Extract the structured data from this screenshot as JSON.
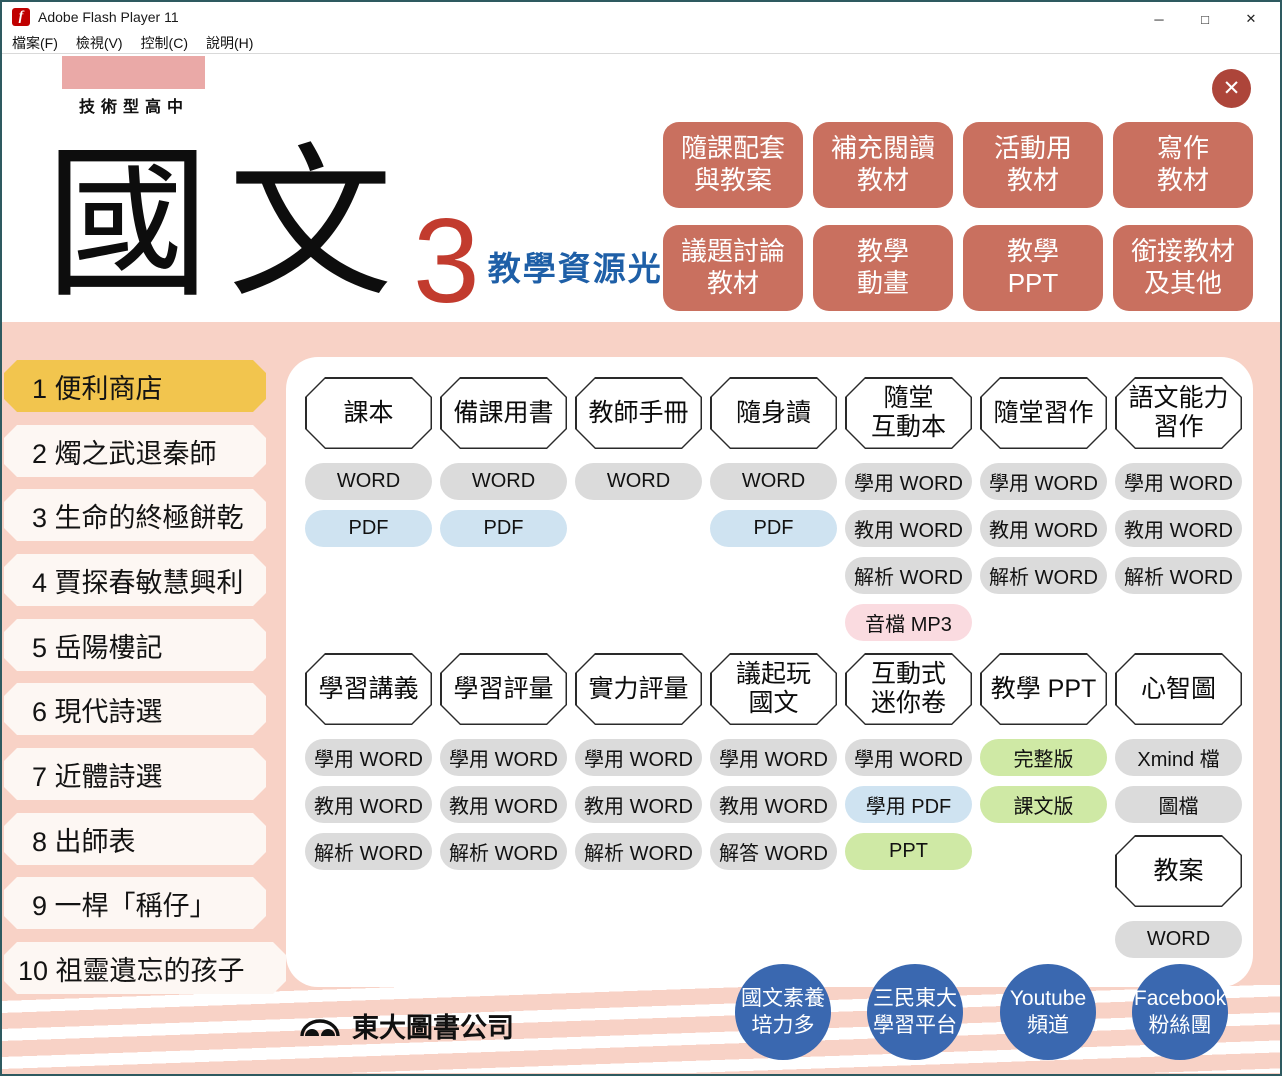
{
  "window": {
    "title": "Adobe Flash Player 11",
    "icon_glyph": "f",
    "menu_items": [
      "檔案(F)",
      "檢視(V)",
      "控制(C)",
      "說明(H)"
    ],
    "controls": [
      {
        "name": "minimize",
        "glyph": "─"
      },
      {
        "name": "maximize",
        "glyph": "□"
      },
      {
        "name": "close",
        "glyph": "✕"
      }
    ]
  },
  "header": {
    "school_band": "技術型高中",
    "title": "國文",
    "volume": "3",
    "subtitle": "教學資源光碟",
    "close_glyph": "✕"
  },
  "category_buttons": [
    "隨課配套\n與教案",
    "補充閱讀\n教材",
    "活動用\n教材",
    "寫作\n教材",
    "議題討論\n教材",
    "教學\n動畫",
    "教學\nPPT",
    "銜接教材\n及其他"
  ],
  "sidebar": [
    {
      "label": "1 便利商店",
      "active": true
    },
    {
      "label": "2 燭之武退秦師",
      "active": false
    },
    {
      "label": "3 生命的終極餅乾",
      "active": false
    },
    {
      "label": "4 賈探春敏慧興利",
      "active": false
    },
    {
      "label": "5 岳陽樓記",
      "active": false
    },
    {
      "label": "6 現代詩選",
      "active": false
    },
    {
      "label": "7 近體詩選",
      "active": false
    },
    {
      "label": "8 出師表",
      "active": false
    },
    {
      "label": "9 一桿「稱仔」",
      "active": false
    },
    {
      "label": "10 祖靈遺忘的孩子",
      "active": false
    }
  ],
  "resources": {
    "row1": [
      {
        "title": "課本",
        "pills": [
          {
            "t": "WORD",
            "c": "gray"
          },
          {
            "t": "PDF",
            "c": "blue"
          }
        ]
      },
      {
        "title": "備課用書",
        "pills": [
          {
            "t": "WORD",
            "c": "gray"
          },
          {
            "t": "PDF",
            "c": "blue"
          }
        ]
      },
      {
        "title": "教師手冊",
        "pills": [
          {
            "t": "WORD",
            "c": "gray"
          }
        ]
      },
      {
        "title": "隨身讀",
        "pills": [
          {
            "t": "WORD",
            "c": "gray"
          },
          {
            "t": "PDF",
            "c": "blue"
          }
        ]
      },
      {
        "title": "隨堂\n互動本",
        "pills": [
          {
            "t": "學用 WORD",
            "c": "gray"
          },
          {
            "t": "教用 WORD",
            "c": "gray"
          },
          {
            "t": "解析 WORD",
            "c": "gray"
          },
          {
            "t": "音檔 MP3",
            "c": "pink"
          }
        ]
      },
      {
        "title": "隨堂習作",
        "pills": [
          {
            "t": "學用 WORD",
            "c": "gray"
          },
          {
            "t": "教用 WORD",
            "c": "gray"
          },
          {
            "t": "解析 WORD",
            "c": "gray"
          }
        ]
      },
      {
        "title": "語文能力\n習作",
        "pills": [
          {
            "t": "學用 WORD",
            "c": "gray"
          },
          {
            "t": "教用 WORD",
            "c": "gray"
          },
          {
            "t": "解析 WORD",
            "c": "gray"
          }
        ]
      }
    ],
    "row2": [
      {
        "title": "學習講義",
        "pills": [
          {
            "t": "學用 WORD",
            "c": "gray"
          },
          {
            "t": "教用 WORD",
            "c": "gray"
          },
          {
            "t": "解析 WORD",
            "c": "gray"
          }
        ]
      },
      {
        "title": "學習評量",
        "pills": [
          {
            "t": "學用 WORD",
            "c": "gray"
          },
          {
            "t": "教用 WORD",
            "c": "gray"
          },
          {
            "t": "解析 WORD",
            "c": "gray"
          }
        ]
      },
      {
        "title": "實力評量",
        "pills": [
          {
            "t": "學用 WORD",
            "c": "gray"
          },
          {
            "t": "教用 WORD",
            "c": "gray"
          },
          {
            "t": "解析 WORD",
            "c": "gray"
          }
        ]
      },
      {
        "title": "議起玩\n國文",
        "pills": [
          {
            "t": "學用 WORD",
            "c": "gray"
          },
          {
            "t": "教用 WORD",
            "c": "gray"
          },
          {
            "t": "解答 WORD",
            "c": "gray"
          }
        ]
      },
      {
        "title": "互動式\n迷你卷",
        "pills": [
          {
            "t": "學用 WORD",
            "c": "gray"
          },
          {
            "t": "學用 PDF",
            "c": "blue"
          },
          {
            "t": "PPT",
            "c": "green"
          }
        ]
      },
      {
        "title": "教學 PPT",
        "pills": [
          {
            "t": "完整版",
            "c": "green"
          },
          {
            "t": "課文版",
            "c": "green"
          }
        ]
      },
      {
        "title": "心智圖",
        "pills": [
          {
            "t": "Xmind 檔",
            "c": "gray"
          },
          {
            "t": "圖檔",
            "c": "gray"
          }
        ],
        "extra": {
          "title": "教案",
          "pills": [
            {
              "t": "WORD",
              "c": "gray"
            }
          ]
        }
      }
    ]
  },
  "footer": {
    "publisher": "東大圖書公司",
    "links": [
      "國文素養\n培力多",
      "三民東大\n學習平台",
      "Youtube\n頻道",
      "Facebook\n粉絲團"
    ]
  },
  "colors": {
    "category_button": "#c9705f",
    "close_button": "#ad453a",
    "pink_background": "#f8d2c6",
    "active_lesson": "#f2c54e",
    "lesson_item": "#fdf7f3",
    "pill_gray": "#dbdbdb",
    "pill_blue": "#cfe3f1",
    "pill_green": "#cfe9a5",
    "pill_pink": "#fadbe0",
    "circle_blue": "#3a68b0",
    "volume_red": "#c23b2e",
    "subtitle_blue": "#1e5fa7",
    "logo_block_pink": "#eaa9a7"
  }
}
